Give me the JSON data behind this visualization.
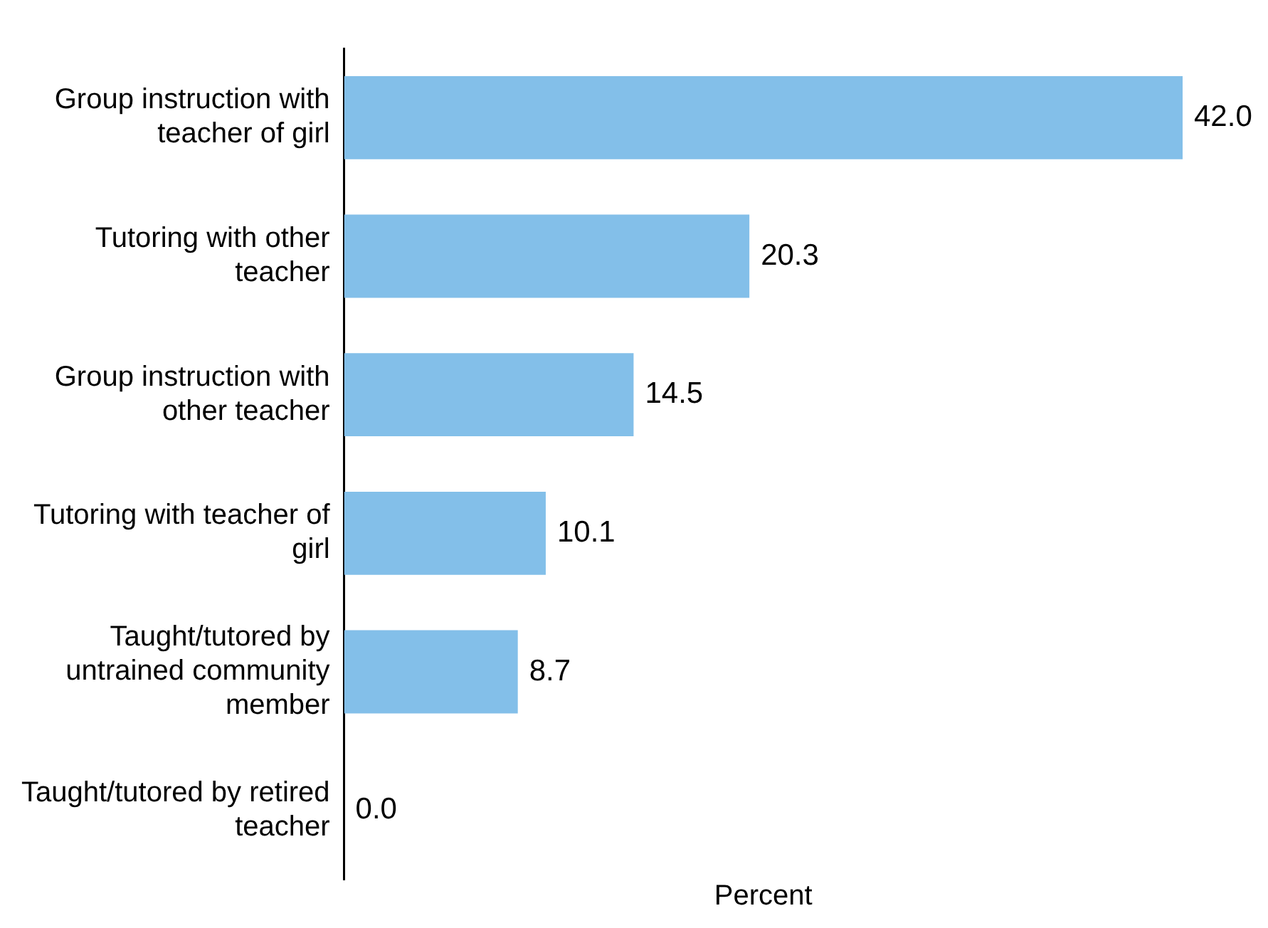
{
  "chart_data": {
    "type": "bar",
    "orientation": "horizontal",
    "xlabel": "Percent",
    "categories": [
      "Group instruction with teacher of girl",
      "Tutoring with other teacher",
      "Group instruction with other teacher",
      "Tutoring with teacher of girl",
      "Taught/tutored by untrained community member",
      "Taught/tutored by retired teacher"
    ],
    "values": [
      42.0,
      20.3,
      14.5,
      10.1,
      8.7,
      0.0
    ],
    "value_labels": [
      "42.0",
      "20.3",
      "14.5",
      "10.1",
      "8.7",
      "0.0"
    ],
    "color": "#83bfe9",
    "grid": false,
    "legend": false,
    "tick_labels": "y"
  }
}
